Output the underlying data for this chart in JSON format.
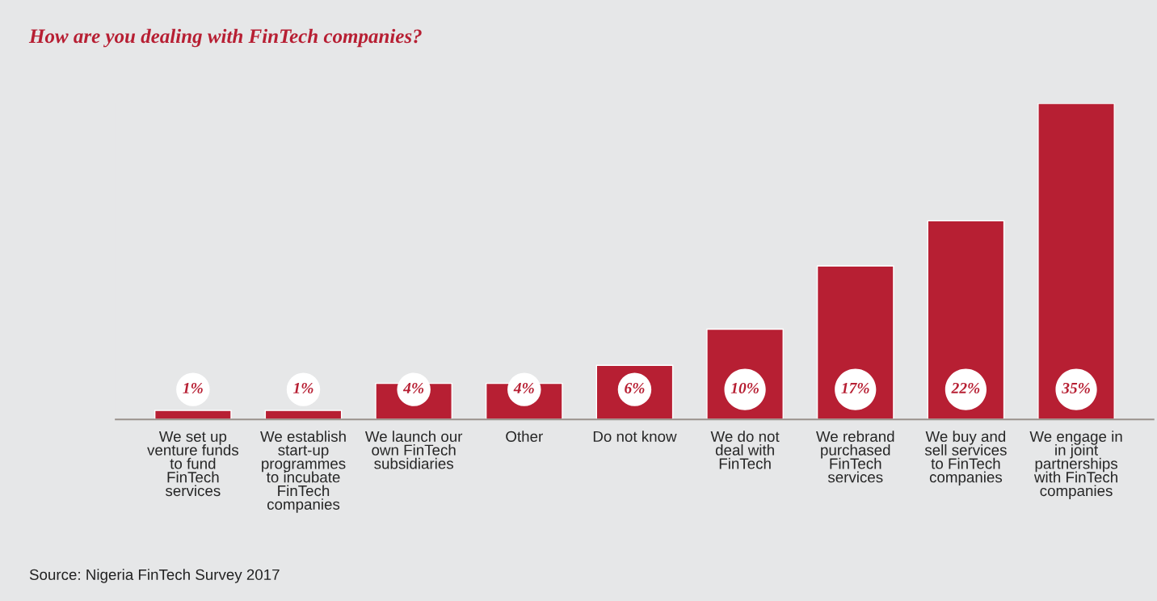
{
  "chart_data": {
    "type": "bar",
    "title": "How are you dealing with FinTech companies?",
    "categories": [
      "We set up\nventure funds\nto fund\nFinTech\nservices",
      "We establish\nstart-up\nprogrammes\nto incubate\nFinTech\ncompanies",
      "We launch our\nown FinTech\nsubsidiaries",
      "Other",
      "Do not know",
      "We do not\ndeal with\nFinTech",
      "We rebrand\npurchased\nFinTech\nservices",
      "We buy and\nsell services\nto FinTech\ncompanies",
      "We engage in\nin joint\npartnerships\nwith FinTech\ncompanies"
    ],
    "values": [
      1,
      1,
      4,
      4,
      6,
      10,
      17,
      22,
      35
    ],
    "value_labels": [
      "1%",
      "1%",
      "4%",
      "4%",
      "6%",
      "10%",
      "17%",
      "22%",
      "35%"
    ],
    "color": "#b71f33",
    "annotations": [
      "Source: Nigeria FinTech Survey 2017"
    ]
  }
}
